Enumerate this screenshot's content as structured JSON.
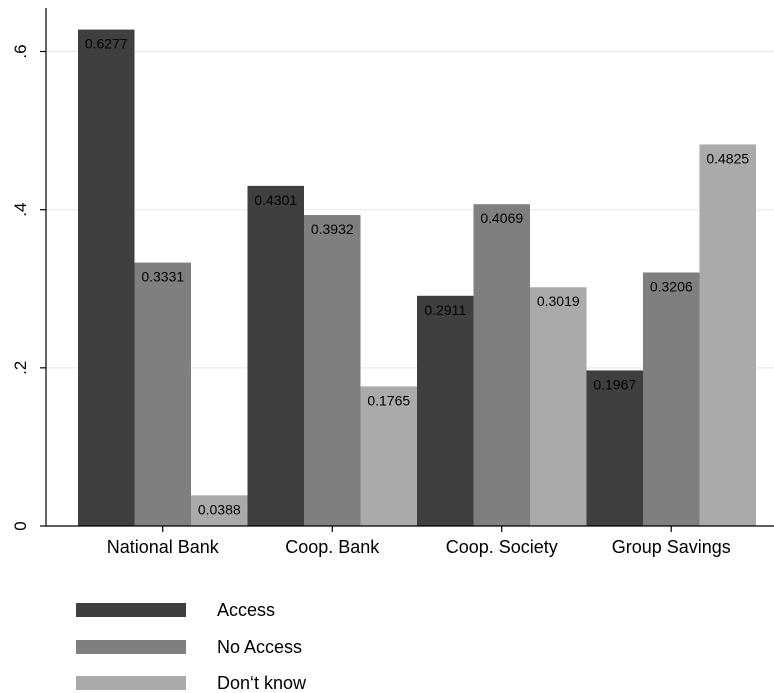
{
  "chart_data": {
    "type": "bar",
    "categories": [
      "National Bank",
      "Coop. Bank",
      "Coop. Society",
      "Group Savings"
    ],
    "series": [
      {
        "name": "Access",
        "values": [
          0.6277,
          0.4301,
          0.2911,
          0.1967
        ],
        "color": "#3f3f3f",
        "labels": [
          "0.6277",
          "0.4301",
          "0.2911",
          "0.1967"
        ]
      },
      {
        "name": "No Access",
        "values": [
          0.3331,
          0.3932,
          0.4069,
          0.3206
        ],
        "color": "#7f7f7f",
        "labels": [
          "0.3331",
          "0.3932",
          "0.4069",
          "0.3206"
        ]
      },
      {
        "name": "Don‘t know",
        "values": [
          0.0388,
          0.1765,
          0.3019,
          0.4825
        ],
        "color": "#aaaaaa",
        "labels": [
          "0.0388",
          "0.1765",
          "0.3019",
          "0.4825"
        ]
      }
    ],
    "yticks": [
      0,
      0.2,
      0.4,
      0.6
    ],
    "ytick_labels": [
      "0",
      ".2",
      ".4",
      ".6"
    ],
    "ylim": [
      0,
      0.655
    ],
    "grid": true,
    "legend_position": "bottom-left",
    "title": "",
    "xlabel": "",
    "ylabel": ""
  }
}
